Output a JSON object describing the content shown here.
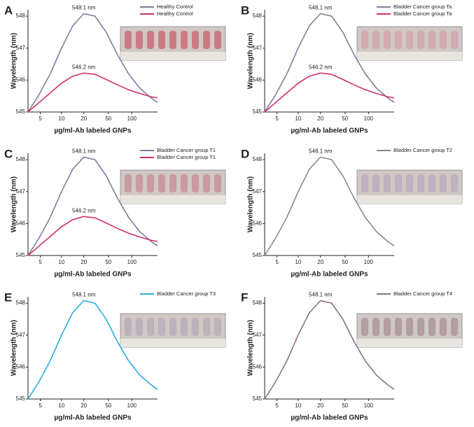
{
  "chart_data": [
    {
      "type": "line",
      "panel_label": "A",
      "xlabel": "µg/ml-Ab labeled GNPs",
      "ylabel": "Wavelength (nm)",
      "x": [
        0,
        0.5,
        1,
        1.5,
        2,
        2.5,
        3,
        3.5,
        4,
        4.5,
        5,
        5.5,
        5.8
      ],
      "series": [
        {
          "name": "Healthy Control",
          "color": "#7d7d9a",
          "values": [
            545.0,
            545.55,
            546.2,
            547.0,
            547.7,
            548.08,
            548.0,
            547.5,
            546.8,
            546.2,
            545.75,
            545.45,
            545.3
          ]
        },
        {
          "name": "Healthy Control",
          "color": "#d0306a",
          "values": [
            545.0,
            545.3,
            545.6,
            545.9,
            546.12,
            546.22,
            546.18,
            546.02,
            545.85,
            545.7,
            545.58,
            545.48,
            545.44
          ]
        }
      ],
      "annotations": [
        "548.1 nm",
        "546.2 nm"
      ],
      "xlim": [
        0,
        5.8
      ],
      "xticks": [
        {
          "value": 0.55,
          "label": "5"
        },
        {
          "value": 1.5,
          "label": "10"
        },
        {
          "value": 2.5,
          "label": "20"
        },
        {
          "value": 3.6,
          "label": "50"
        },
        {
          "value": 4.65,
          "label": "100"
        }
      ],
      "ylim": [
        545,
        548.2
      ],
      "yticks": [
        545,
        546,
        547,
        548
      ]
    },
    {
      "type": "line",
      "panel_label": "B",
      "xlabel": "µg/ml-Ab labeled GNPs",
      "ylabel": "Wavelength (nm)",
      "x": [
        0,
        0.5,
        1,
        1.5,
        2,
        2.5,
        3,
        3.5,
        4,
        4.5,
        5,
        5.5,
        5.8
      ],
      "series": [
        {
          "name": "Bladder Cancer group Ta",
          "color": "#7d7d9a",
          "values": [
            545.0,
            545.55,
            546.2,
            547.0,
            547.7,
            548.08,
            548.0,
            547.5,
            546.8,
            546.2,
            545.75,
            545.45,
            545.3
          ]
        },
        {
          "name": "Bladder Cancer group Ta",
          "color": "#d0306a",
          "values": [
            545.0,
            545.3,
            545.6,
            545.9,
            546.12,
            546.22,
            546.18,
            546.02,
            545.85,
            545.7,
            545.58,
            545.48,
            545.44
          ]
        }
      ],
      "annotations": [
        "548.1 nm",
        "546.2 nm"
      ],
      "xlim": [
        0,
        5.8
      ],
      "xticks": [
        {
          "value": 0.55,
          "label": "5"
        },
        {
          "value": 1.5,
          "label": "10"
        },
        {
          "value": 2.5,
          "label": "20"
        },
        {
          "value": 3.6,
          "label": "50"
        },
        {
          "value": 4.65,
          "label": "100"
        }
      ],
      "ylim": [
        545,
        548.2
      ],
      "yticks": [
        545,
        546,
        547,
        548
      ]
    },
    {
      "type": "line",
      "panel_label": "C",
      "xlabel": "µg/ml-Ab labeled GNPs",
      "ylabel": "Wavelength (nm)",
      "x": [
        0,
        0.5,
        1,
        1.5,
        2,
        2.5,
        3,
        3.5,
        4,
        4.5,
        5,
        5.5,
        5.8
      ],
      "series": [
        {
          "name": "Bladder Cancer group T1",
          "color": "#7d7d9a",
          "values": [
            545.0,
            545.55,
            546.2,
            547.0,
            547.7,
            548.08,
            548.0,
            547.5,
            546.8,
            546.2,
            545.75,
            545.45,
            545.3
          ]
        },
        {
          "name": "Bladder Cancer group T1",
          "color": "#d0306a",
          "values": [
            545.0,
            545.3,
            545.6,
            545.9,
            546.12,
            546.22,
            546.18,
            546.02,
            545.85,
            545.7,
            545.58,
            545.48,
            545.44
          ]
        }
      ],
      "annotations": [
        "548.1 nm",
        "546.2 nm"
      ],
      "xlim": [
        0,
        5.8
      ],
      "xticks": [
        {
          "value": 0.55,
          "label": "5"
        },
        {
          "value": 1.5,
          "label": "10"
        },
        {
          "value": 2.5,
          "label": "20"
        },
        {
          "value": 3.6,
          "label": "50"
        },
        {
          "value": 4.65,
          "label": "100"
        }
      ],
      "ylim": [
        545,
        548.2
      ],
      "yticks": [
        545,
        546,
        547,
        548
      ]
    },
    {
      "type": "line",
      "panel_label": "D",
      "xlabel": "µg/ml-Ab labeled GNPs",
      "ylabel": "Wavelength (nm)",
      "x": [
        0,
        0.5,
        1,
        1.5,
        2,
        2.5,
        3,
        3.5,
        4,
        4.5,
        5,
        5.5,
        5.8
      ],
      "series": [
        {
          "name": "Bladder Cancer group T2",
          "color": "#8a8a8a",
          "values": [
            545.0,
            545.55,
            546.2,
            547.0,
            547.7,
            548.08,
            548.0,
            547.5,
            546.8,
            546.2,
            545.75,
            545.45,
            545.3
          ]
        }
      ],
      "annotations": [
        "548.1 nm"
      ],
      "xlim": [
        0,
        5.8
      ],
      "xticks": [
        {
          "value": 0.55,
          "label": "5"
        },
        {
          "value": 1.5,
          "label": "10"
        },
        {
          "value": 2.5,
          "label": "20"
        },
        {
          "value": 3.6,
          "label": "50"
        },
        {
          "value": 4.65,
          "label": "100"
        }
      ],
      "ylim": [
        545,
        548.2
      ],
      "yticks": [
        545,
        546,
        547,
        548
      ]
    },
    {
      "type": "line",
      "panel_label": "E",
      "xlabel": "µg/ml-Ab labeled GNPs",
      "ylabel": "Wavelength (nm)",
      "x": [
        0,
        0.5,
        1,
        1.5,
        2,
        2.5,
        3,
        3.5,
        4,
        4.5,
        5,
        5.5,
        5.8
      ],
      "series": [
        {
          "name": "Bladder Cancer group T3",
          "color": "#29abe2",
          "values": [
            545.0,
            545.55,
            546.2,
            547.0,
            547.7,
            548.08,
            548.0,
            547.5,
            546.8,
            546.2,
            545.75,
            545.45,
            545.3
          ]
        }
      ],
      "annotations": [
        "548.1 nm"
      ],
      "xlim": [
        0,
        5.8
      ],
      "xticks": [
        {
          "value": 0.55,
          "label": "5"
        },
        {
          "value": 1.5,
          "label": "10"
        },
        {
          "value": 2.5,
          "label": "20"
        },
        {
          "value": 3.6,
          "label": "50"
        },
        {
          "value": 4.65,
          "label": "100"
        }
      ],
      "ylim": [
        545,
        548.2
      ],
      "yticks": [
        545,
        546,
        547,
        548
      ]
    },
    {
      "type": "line",
      "panel_label": "F",
      "xlabel": "µg/ml-Ab labeled GNPs",
      "ylabel": "Wavelength (nm)",
      "x": [
        0,
        0.5,
        1,
        1.5,
        2,
        2.5,
        3,
        3.5,
        4,
        4.5,
        5,
        5.5,
        5.8
      ],
      "series": [
        {
          "name": "Bladder Cancer group T4",
          "color": "#8a6f8a",
          "values": [
            545.0,
            545.55,
            546.2,
            547.0,
            547.7,
            548.08,
            548.0,
            547.5,
            546.8,
            546.2,
            545.75,
            545.45,
            545.3
          ]
        }
      ],
      "annotations": [
        "548.1 nm"
      ],
      "xlim": [
        0,
        5.8
      ],
      "xticks": [
        {
          "value": 0.55,
          "label": "5"
        },
        {
          "value": 1.5,
          "label": "10"
        },
        {
          "value": 2.5,
          "label": "20"
        },
        {
          "value": 3.6,
          "label": "50"
        },
        {
          "value": 4.65,
          "label": "100"
        }
      ],
      "ylim": [
        545,
        548.2
      ],
      "yticks": [
        545,
        546,
        547,
        548
      ]
    }
  ]
}
